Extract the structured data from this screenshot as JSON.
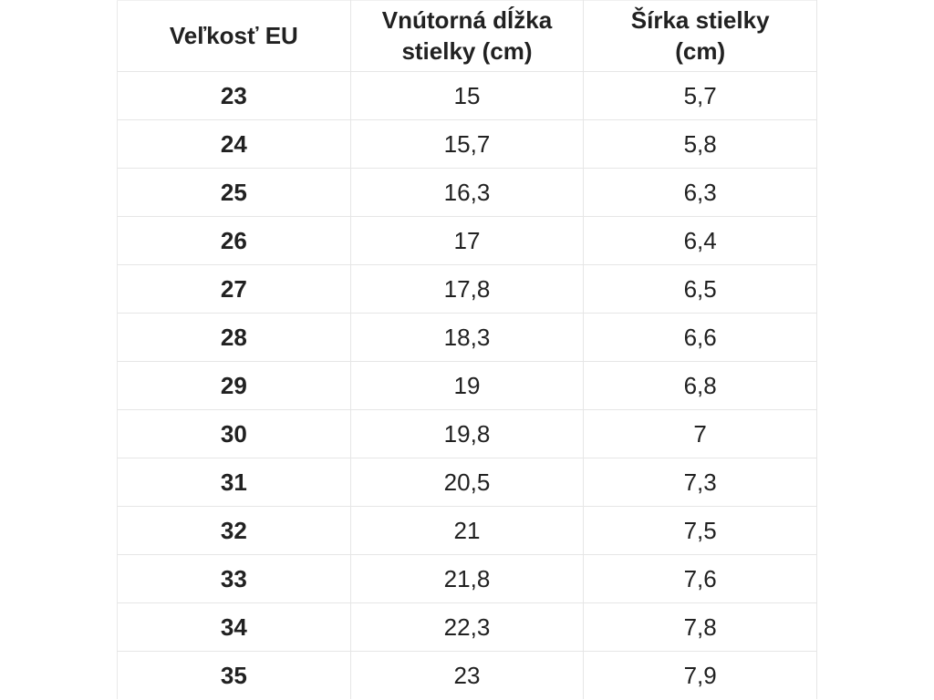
{
  "page": {
    "background": "#ffffff"
  },
  "colors": {
    "text": "#212121",
    "border": "#e6e6e6",
    "background": "#ffffff"
  },
  "chart_data": {
    "type": "table",
    "title": "",
    "columns": [
      "Veľkosť EU",
      "Vnútorná dĺžka stielky (cm)",
      "Šírka stielky (cm)"
    ],
    "rows": [
      [
        "23",
        "15",
        "5,7"
      ],
      [
        "24",
        "15,7",
        "5,8"
      ],
      [
        "25",
        "16,3",
        "6,3"
      ],
      [
        "26",
        "17",
        "6,4"
      ],
      [
        "27",
        "17,8",
        "6,5"
      ],
      [
        "28",
        "18,3",
        "6,6"
      ],
      [
        "29",
        "19",
        "6,8"
      ],
      [
        "30",
        "19,8",
        "7"
      ],
      [
        "31",
        "20,5",
        "7,3"
      ],
      [
        "32",
        "21",
        "7,5"
      ],
      [
        "33",
        "21,8",
        "7,6"
      ],
      [
        "34",
        "22,3",
        "7,8"
      ],
      [
        "35",
        "23",
        "7,9"
      ]
    ]
  }
}
